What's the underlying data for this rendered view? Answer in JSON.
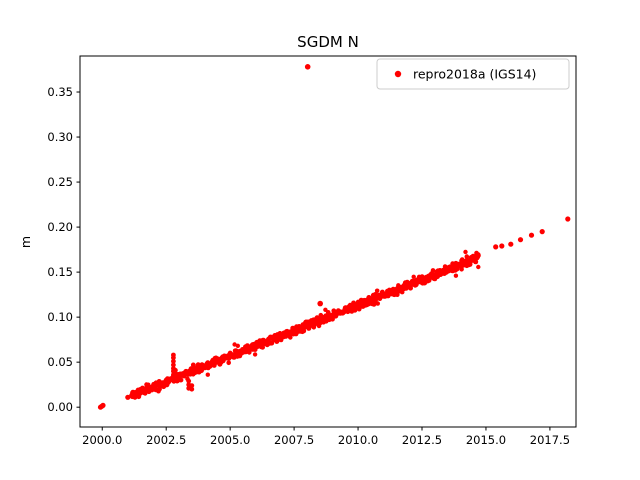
{
  "figure": {
    "background": "#ffffff"
  },
  "chart_data": {
    "type": "scatter",
    "title": "SGDM N",
    "xlabel": "",
    "ylabel": "m",
    "xlim": [
      1999.13,
      2018.52
    ],
    "ylim": [
      -0.022,
      0.39
    ],
    "xticks": [
      2000.0,
      2002.5,
      2005.0,
      2007.5,
      2010.0,
      2012.5,
      2015.0,
      2017.5
    ],
    "xtick_labels": [
      "2000.0",
      "2002.5",
      "2005.0",
      "2007.5",
      "2010.0",
      "2012.5",
      "2015.0",
      "2017.5"
    ],
    "yticks": [
      0.0,
      0.05,
      0.1,
      0.15,
      0.2,
      0.25,
      0.3,
      0.35
    ],
    "ytick_labels": [
      "0.00",
      "0.05",
      "0.10",
      "0.15",
      "0.20",
      "0.25",
      "0.30",
      "0.35"
    ],
    "grid": false,
    "legend": {
      "label": "repro2018a (IGS14)",
      "location": "upper right",
      "marker": "dot",
      "marker_color": "#ff0000"
    },
    "series": [
      {
        "name": "repro2018a (IGS14)",
        "color": "#ff0000",
        "marker": "point",
        "trend": {
          "slope_m_per_year": 0.0113,
          "reference_year": 2000,
          "intercept_m": 0.0,
          "dense_start": 2001.15,
          "dense_end": 2014.72,
          "scatter_m": 0.005
        },
        "trend_samples": [
          [
            2001,
            0.011
          ],
          [
            2002,
            0.023
          ],
          [
            2003,
            0.034
          ],
          [
            2004,
            0.045
          ],
          [
            2005,
            0.057
          ],
          [
            2006,
            0.068
          ],
          [
            2007,
            0.079
          ],
          [
            2008,
            0.09
          ],
          [
            2009,
            0.102
          ],
          [
            2010,
            0.113
          ],
          [
            2011,
            0.124
          ],
          [
            2012,
            0.136
          ],
          [
            2013,
            0.147
          ],
          [
            2014,
            0.158
          ]
        ],
        "isolated_points": [
          [
            1999.93,
            0.0
          ],
          [
            1999.98,
            0.001
          ],
          [
            2000.03,
            0.002
          ]
        ],
        "spike_points": [
          {
            "x": 2002.78,
            "ys": [
              0.036,
              0.04,
              0.043,
              0.047,
              0.051,
              0.055,
              0.058
            ]
          },
          {
            "x": 2002.86,
            "ys": [
              0.033,
              0.037,
              0.041
            ]
          },
          {
            "x": 2003.38,
            "ys": [
              0.021,
              0.025,
              0.029
            ]
          },
          {
            "x": 2003.5,
            "ys": [
              0.02,
              0.024
            ]
          },
          {
            "x": 2003.56,
            "ys": [
              0.044,
              0.047
            ]
          },
          {
            "x": 2009.05,
            "ys": [
              0.104,
              0.107
            ]
          }
        ],
        "outliers": [
          [
            2008.03,
            0.378
          ],
          [
            2008.52,
            0.115
          ]
        ],
        "tail_points": [
          [
            2015.38,
            0.178
          ],
          [
            2015.62,
            0.179
          ],
          [
            2015.97,
            0.181
          ],
          [
            2016.35,
            0.186
          ],
          [
            2016.78,
            0.191
          ],
          [
            2017.2,
            0.195
          ],
          [
            2018.2,
            0.209
          ]
        ]
      }
    ],
    "render": {
      "x_step": 0.025,
      "seed": 42,
      "extra_point_prob": 0.3,
      "extra_scatter_m": 0.008
    }
  }
}
